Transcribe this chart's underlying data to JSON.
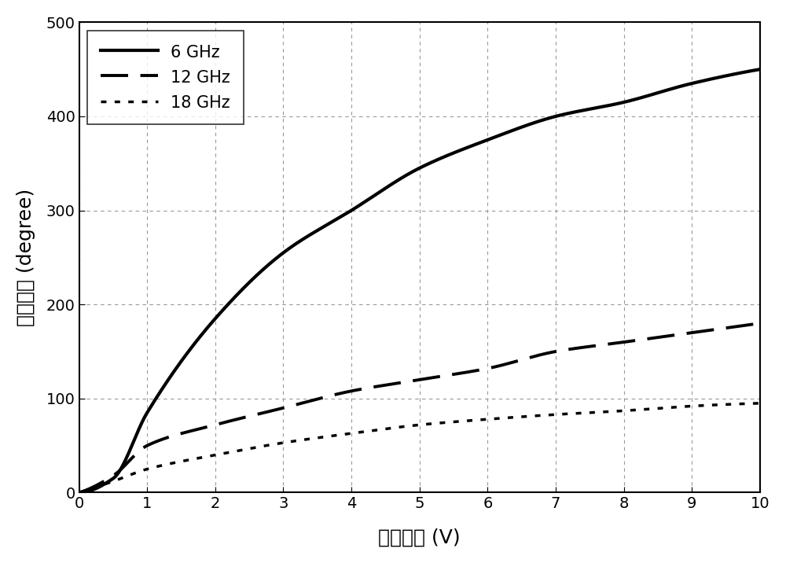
{
  "xlabel": "控制电压 (V)",
  "ylabel": "移相范围 (degree)",
  "xlim": [
    0,
    10
  ],
  "ylim": [
    0,
    500
  ],
  "xticks": [
    0,
    1,
    2,
    3,
    4,
    5,
    6,
    7,
    8,
    9,
    10
  ],
  "yticks": [
    0,
    100,
    200,
    300,
    400,
    500
  ],
  "series": [
    {
      "label": "6 GHz",
      "linestyle": "-",
      "linewidth": 3.0,
      "A": 142.0,
      "n": 0.5
    },
    {
      "label": "12 GHz",
      "linestyle": "--",
      "linewidth": 2.8,
      "A": 56.96,
      "n": 0.5
    },
    {
      "label": "18 GHz",
      "linestyle": "dotted",
      "linewidth": 2.5,
      "A": 30.05,
      "n": 0.5
    }
  ],
  "legend_fontsize": 15,
  "axis_fontsize": 18,
  "tick_fontsize": 14,
  "grid_color": "#aaaaaa",
  "background_color": "#ffffff",
  "fig_width": 10.0,
  "fig_height": 7.16,
  "legend_dash_6ghz": [
    10,
    0
  ],
  "legend_dash_12ghz": [
    8,
    4
  ],
  "legend_dash_18ghz": [
    2,
    3
  ]
}
